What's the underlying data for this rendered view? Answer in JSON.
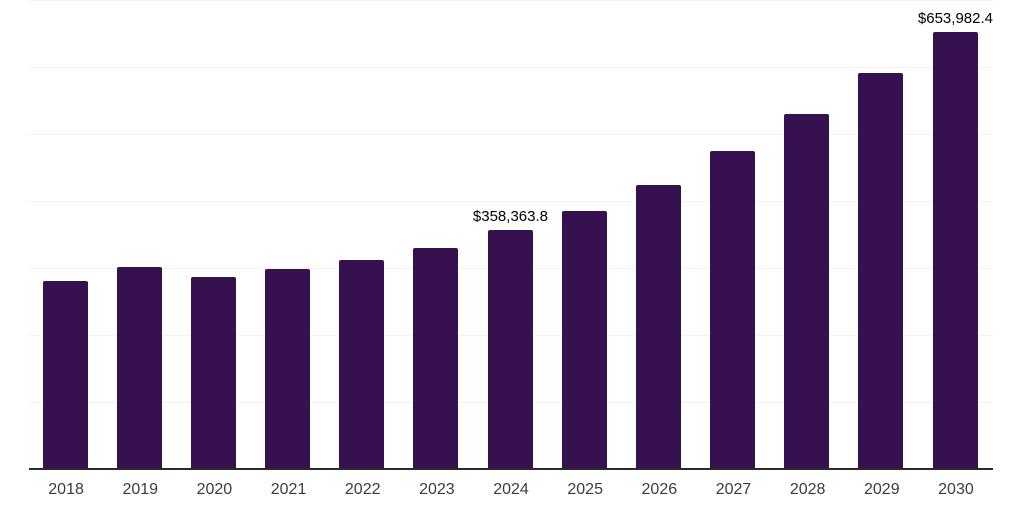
{
  "chart_data": {
    "type": "bar",
    "title": "",
    "xlabel": "",
    "ylabel": "",
    "categories": [
      "2018",
      "2019",
      "2020",
      "2021",
      "2022",
      "2023",
      "2024",
      "2025",
      "2026",
      "2027",
      "2028",
      "2029",
      "2030"
    ],
    "values": [
      282000,
      303000,
      288200,
      300100,
      313300,
      331000,
      358363.8,
      387200,
      425700,
      475900,
      532000,
      592700,
      653982.4
    ],
    "data_labels": {
      "2024": "$358,363.8",
      "2030": "$653,982.4"
    },
    "ylim": [
      0,
      700000
    ],
    "gridline_interval": 100000,
    "grid": "horizontal",
    "legend_position": "none",
    "colors": {
      "bar": "#35114F",
      "axis_line": "#2B2B2B",
      "gridline": "#F2F2F2",
      "tick_label": "#3C3C3C",
      "data_label": "#000000",
      "background": "#FFFFFF"
    }
  }
}
